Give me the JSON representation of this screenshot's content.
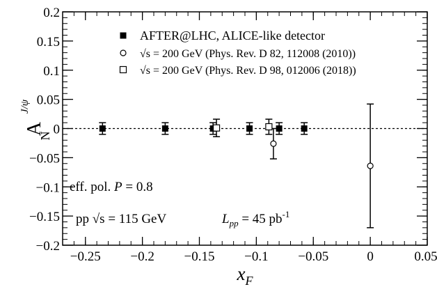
{
  "chart_data": {
    "type": "scatter",
    "xlabel": "x",
    "xlabel_sub": "F",
    "ylabel": "A",
    "ylabel_sub": "N",
    "ylabel_sup": "J/ψ",
    "xlim": [
      -0.27,
      0.05
    ],
    "ylim": [
      -0.2,
      0.2
    ],
    "x_ticks": [
      -0.25,
      -0.2,
      -0.15,
      -0.1,
      -0.05,
      0,
      0.05
    ],
    "x_tick_labels": [
      "−0.25",
      "−0.2",
      "−0.15",
      "−0.1",
      "−0.05",
      "0",
      "0.05"
    ],
    "y_ticks": [
      -0.2,
      -0.15,
      -0.1,
      -0.05,
      0,
      0.05,
      0.1,
      0.15,
      0.2
    ],
    "y_tick_labels": [
      "−0.2",
      "−0.15",
      "−0.1",
      "−0.05",
      "0",
      "0.05",
      "0.1",
      "0.15",
      "0.2"
    ],
    "x_minor_step": 0.01,
    "y_minor_step": 0.01,
    "zero_line": true,
    "legend_position": "top-right",
    "series": [
      {
        "name": "AFTER@LHC, ALICE-like detector",
        "marker": "filled-square",
        "points": [
          {
            "x": -0.235,
            "y": 0,
            "err": 0.01
          },
          {
            "x": -0.18,
            "y": 0,
            "err": 0.01
          },
          {
            "x": -0.138,
            "y": 0,
            "err": 0.01
          },
          {
            "x": -0.106,
            "y": 0,
            "err": 0.01
          },
          {
            "x": -0.08,
            "y": 0,
            "err": 0.01
          },
          {
            "x": -0.058,
            "y": 0,
            "err": 0.01
          }
        ]
      },
      {
        "name": "√s = 200 GeV (Phys. Rev. D 82, 112008 (2010))",
        "marker": "open-circle",
        "points": [
          {
            "x": -0.085,
            "y": -0.026,
            "err": 0.026
          },
          {
            "x": 0,
            "y": -0.064,
            "err": 0.106
          }
        ]
      },
      {
        "name": "√s = 200 GeV (Phys. Rev. D 98, 012006 (2018))",
        "marker": "open-square",
        "points": [
          {
            "x": -0.135,
            "y": 0.001,
            "err": 0.015
          },
          {
            "x": -0.089,
            "y": 0.003,
            "err": 0.013
          }
        ]
      }
    ],
    "annotations": [
      {
        "text": "eff. pol. ",
        "italic_part": "P",
        "tail": " = 0.8",
        "position": "lower-left"
      },
      {
        "text": "pp √s = 115 GeV",
        "position": "bottom-left"
      },
      {
        "text": "L",
        "sub": "pp",
        "tail": " = 45 pb",
        "sup": "-1",
        "position": "bottom-center"
      }
    ]
  }
}
